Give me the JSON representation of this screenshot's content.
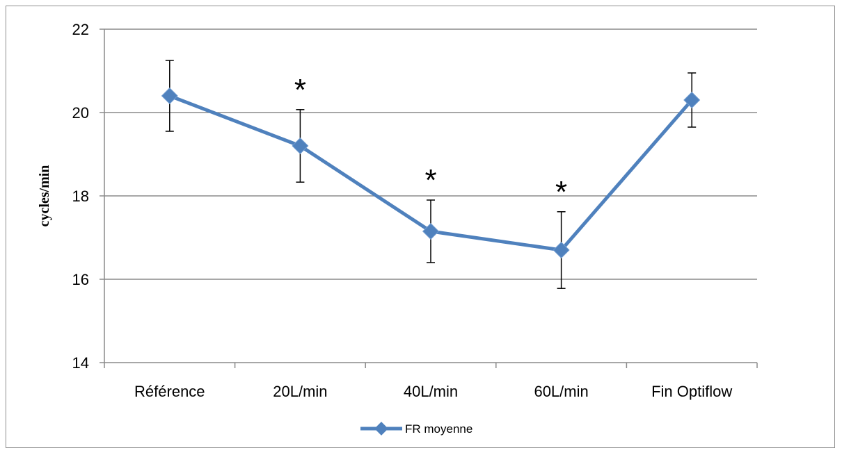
{
  "chart_data": {
    "type": "line",
    "categories": [
      "Référence",
      "20L/min",
      "40L/min",
      "60L/min",
      "Fin Optiflow"
    ],
    "series": [
      {
        "name": "FR moyenne",
        "values": [
          20.4,
          19.2,
          17.15,
          16.7,
          20.3
        ],
        "error": [
          0.85,
          0.87,
          0.75,
          0.92,
          0.65
        ],
        "color": "#4f81bd"
      }
    ],
    "significance": [
      "",
      "*",
      "*",
      "*",
      ""
    ],
    "ylabel": "cycles/min",
    "xlabel": "",
    "ylim": [
      14,
      22
    ],
    "yticks": [
      14,
      16,
      18,
      20,
      22
    ],
    "grid": true,
    "legend_position": "bottom"
  }
}
